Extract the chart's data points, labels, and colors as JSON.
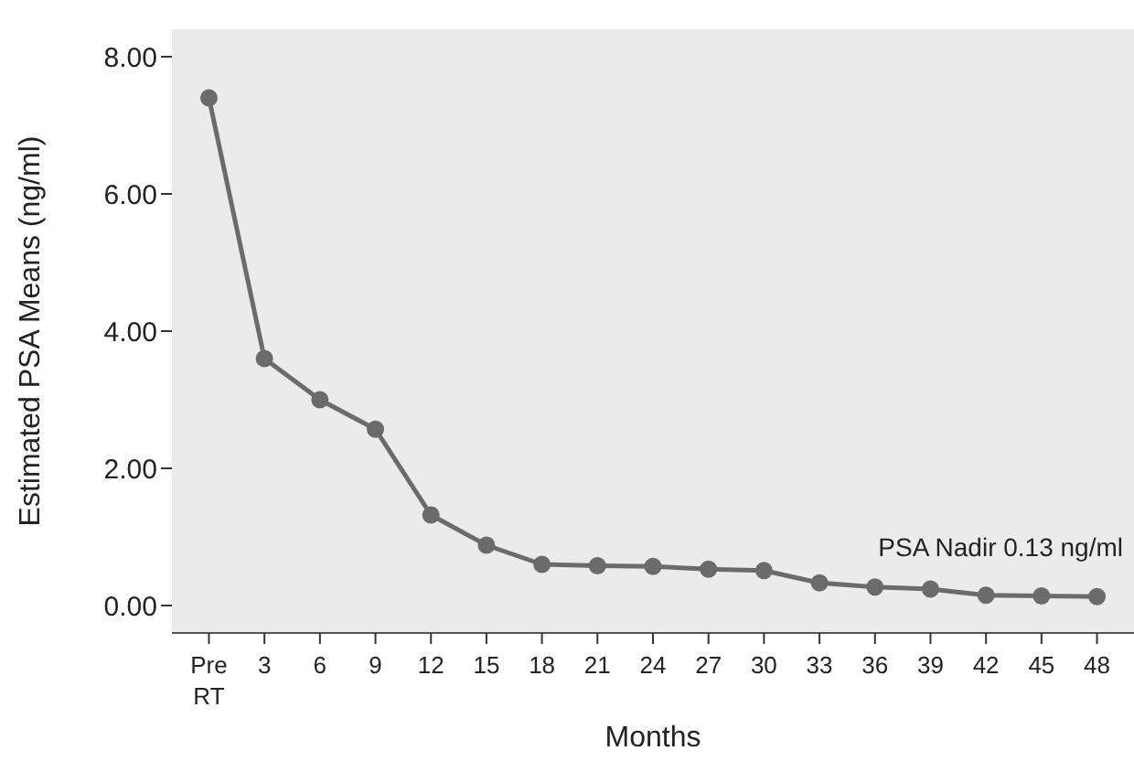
{
  "chart_data": {
    "type": "line",
    "xlabel": "Months",
    "ylabel": "Estimated PSA Means (ng/ml)",
    "x": [
      0,
      3,
      6,
      9,
      12,
      15,
      18,
      21,
      24,
      27,
      30,
      33,
      36,
      39,
      42,
      45,
      48
    ],
    "xlim": [
      -2,
      50
    ],
    "xticks": [
      {
        "value": 0,
        "label": "Pre RT"
      },
      3,
      6,
      9,
      12,
      15,
      18,
      21,
      24,
      27,
      30,
      33,
      36,
      39,
      42,
      45,
      48
    ],
    "series": [
      {
        "color": "#6b6b6b",
        "values": [
          7.4,
          3.6,
          3.0,
          2.57,
          1.32,
          0.88,
          0.6,
          0.58,
          0.57,
          0.53,
          0.51,
          0.33,
          0.27,
          0.24,
          0.15,
          0.14,
          0.13
        ]
      }
    ],
    "ylim": [
      -0.4,
      8.4
    ],
    "yticks": [
      {
        "value": 0,
        "label": "0.00"
      },
      {
        "value": 2,
        "label": "2.00"
      },
      {
        "value": 4,
        "label": "4.00"
      },
      {
        "value": 6,
        "label": "6.00"
      },
      {
        "value": 8,
        "label": "8.00"
      }
    ],
    "annotations": [
      "PSA Nadir 0.13 ng/ml"
    ],
    "grid": false,
    "marker": "circle",
    "line_style": "solid"
  }
}
